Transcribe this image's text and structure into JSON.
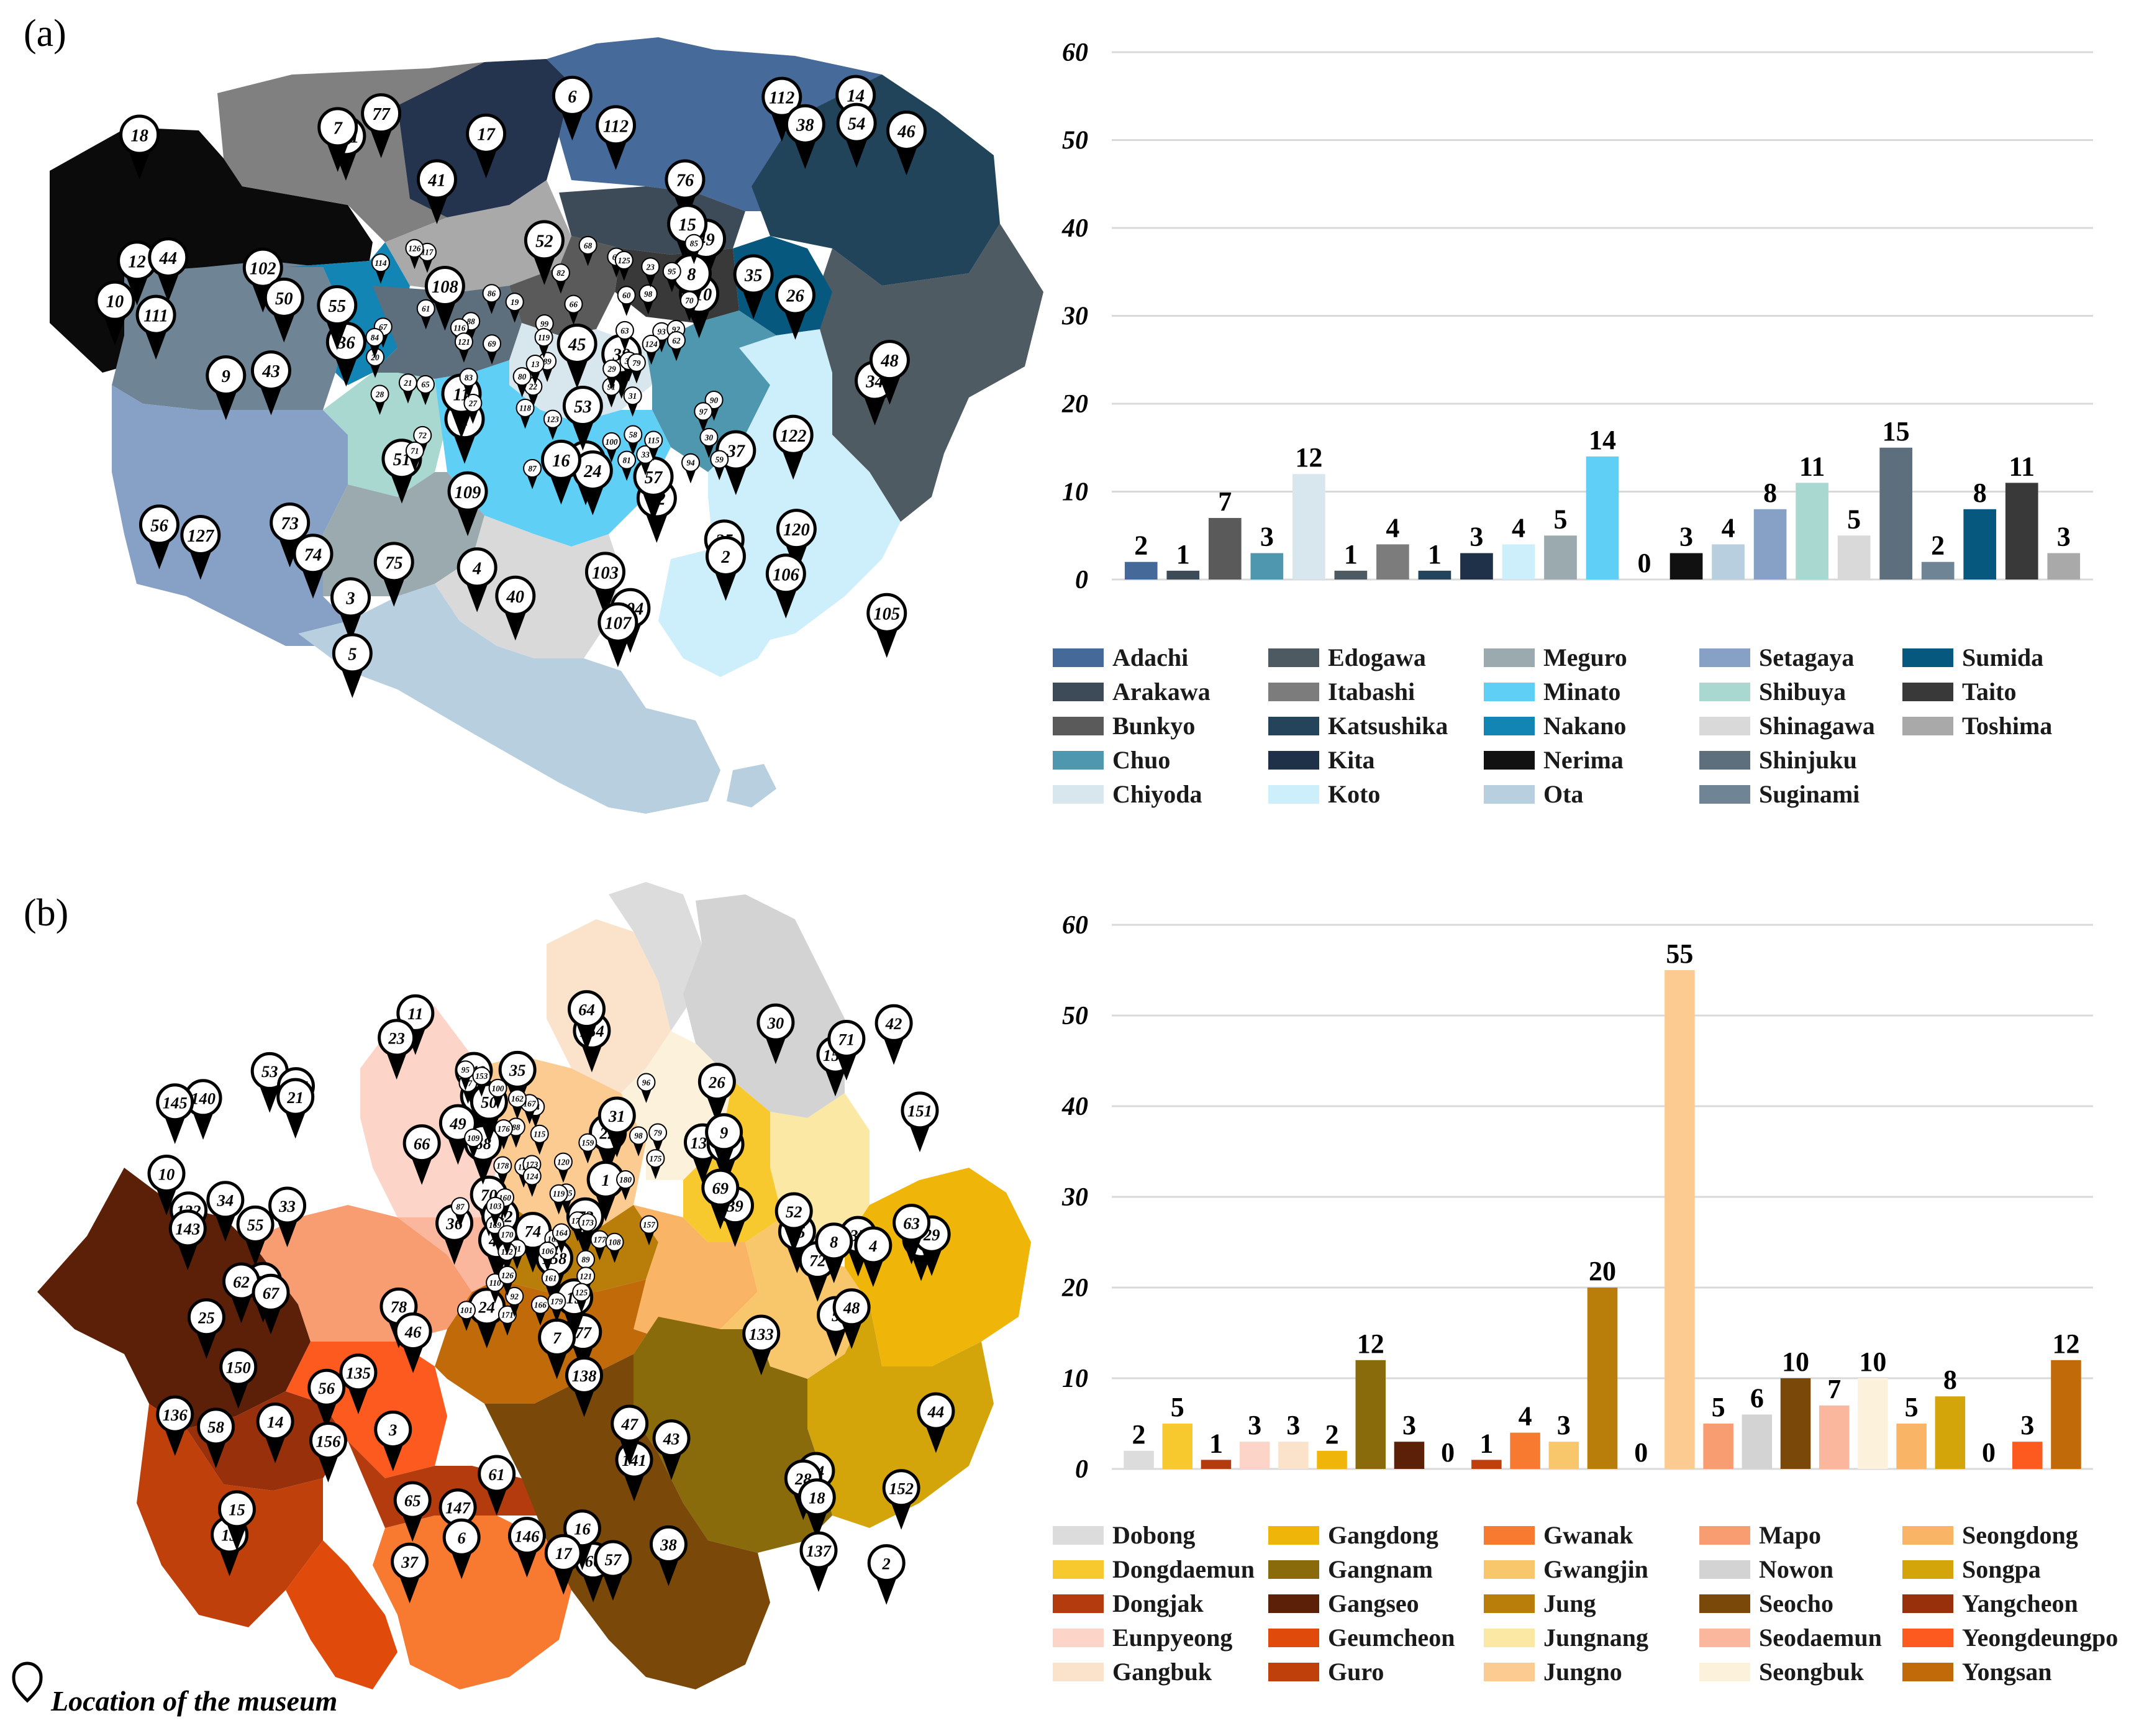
{
  "panels": [
    {
      "label": "(a)"
    },
    {
      "label": "(b)"
    }
  ],
  "map_note": "Location of the museum",
  "map_pins": {
    "tokyo": {
      "big": [
        "104",
        "101",
        "73",
        "102",
        "35",
        "103",
        "34",
        "36",
        "1",
        "74",
        "127",
        "12",
        "11",
        "13",
        "110",
        "112",
        "111",
        "38",
        "37",
        "26",
        "25",
        "24",
        "3",
        "2",
        "39",
        "49",
        "43",
        "50",
        "40",
        "41",
        "42",
        "14",
        "76",
        "75",
        "77",
        "4",
        "6",
        "44",
        "48",
        "57",
        "17",
        "45",
        "46",
        "120",
        "112",
        "122",
        "16",
        "109",
        "53",
        "54",
        "51",
        "52",
        "55",
        "15",
        "18",
        "105",
        "106",
        "108",
        "5",
        "56",
        "10",
        "107",
        "8",
        "9",
        "7"
      ],
      "small": [
        "91",
        "90",
        "93",
        "97",
        "100",
        "98",
        "92",
        "99",
        "30",
        "33",
        "32",
        "29",
        "28",
        "31",
        "27",
        "94",
        "95",
        "21",
        "23",
        "19",
        "22",
        "20",
        "63",
        "64",
        "62",
        "72",
        "61",
        "60",
        "59",
        "65",
        "70",
        "68",
        "67",
        "58",
        "69",
        "71",
        "66",
        "89",
        "79",
        "81",
        "80",
        "83",
        "82",
        "87",
        "84",
        "86",
        "85",
        "88",
        "13",
        "117",
        "118",
        "116",
        "119",
        "115",
        "114",
        "121",
        "125",
        "126",
        "124",
        "123"
      ]
    },
    "seoul": {
      "big": [
        "11",
        "26",
        "27",
        "24",
        "77",
        "12",
        "140",
        "139",
        "25",
        "22",
        "158",
        "13",
        "23",
        "78",
        "60",
        "57",
        "61",
        "30",
        "39",
        "56",
        "55",
        "62",
        "29",
        "32",
        "136",
        "34",
        "40",
        "45",
        "54",
        "58",
        "28",
        "31",
        "14",
        "36",
        "43",
        "44",
        "52",
        "147",
        "42",
        "35",
        "15",
        "37",
        "38",
        "53",
        "146",
        "20",
        "18",
        "9",
        "10",
        "19",
        "51",
        "72",
        "73",
        "155",
        "154",
        "156",
        "70",
        "74",
        "71",
        "68",
        "152",
        "5",
        "134",
        "3",
        "7",
        "132",
        "8",
        "67",
        "66",
        "151",
        "150",
        "149",
        "63",
        "69",
        "1",
        "33",
        "65",
        "21",
        "4",
        "135",
        "64",
        "16",
        "137",
        "145",
        "49",
        "50",
        "2",
        "133",
        "46",
        "141",
        "143",
        "48",
        "6",
        "17",
        "142",
        "47",
        "138"
      ],
      "small": [
        "97",
        "95",
        "87",
        "96",
        "79",
        "89",
        "84",
        "91",
        "101",
        "177",
        "112",
        "165",
        "171",
        "169",
        "163",
        "111",
        "106",
        "110",
        "88",
        "173",
        "175",
        "161",
        "92",
        "160",
        "103",
        "164",
        "170",
        "108",
        "166",
        "167",
        "172",
        "162",
        "98",
        "157",
        "119",
        "178",
        "100",
        "124",
        "121",
        "159",
        "176",
        "179",
        "173",
        "115",
        "153",
        "120",
        "126",
        "180",
        "125",
        "109"
      ]
    }
  },
  "chart_data": [
    {
      "id": "tokyo",
      "type": "bar",
      "title": "",
      "xlabel": "",
      "ylabel": "",
      "ylim": [
        0,
        60
      ],
      "yticks": [
        "0",
        "10",
        "20",
        "30",
        "40",
        "50",
        "60"
      ],
      "grid": true,
      "categories": [
        "Adachi",
        "Arakawa",
        "Bunkyo",
        "Chuo",
        "Chiyoda",
        "Edogawa",
        "Itabashi",
        "Katsushika",
        "Kita",
        "Koto",
        "Meguro",
        "Minato",
        "Nakano",
        "Nerima",
        "Ota",
        "Setagaya",
        "Shibuya",
        "Shinagawa",
        "Shinjuku",
        "Suginami",
        "Sumida",
        "Taito",
        "Toshima"
      ],
      "values": [
        2,
        1,
        7,
        3,
        12,
        1,
        4,
        1,
        3,
        4,
        5,
        14,
        0,
        3,
        4,
        8,
        11,
        5,
        15,
        2,
        8,
        11,
        3
      ],
      "colors": [
        "#456a9a",
        "#3c4b57",
        "#5a5a5a",
        "#4f97ae",
        "#d8e6ee",
        "#4d5a62",
        "#7c7c7c",
        "#23445a",
        "#1f3149",
        "#cdeefb",
        "#9aaaaf",
        "#5fcff6",
        "#1285b5",
        "#111111",
        "#b8cfdf",
        "#86a0c6",
        "#a8d8cf",
        "#d9d9d9",
        "#5d6e7c",
        "#6f8596",
        "#07587e",
        "#393939",
        "#a9a9a9"
      ],
      "legend": {
        "placement": "bottom",
        "columns": 5
      }
    },
    {
      "id": "seoul",
      "type": "bar",
      "title": "",
      "xlabel": "",
      "ylabel": "",
      "ylim": [
        0,
        60
      ],
      "yticks": [
        "0",
        "10",
        "20",
        "30",
        "40",
        "50",
        "60"
      ],
      "grid": true,
      "categories": [
        "Dobong",
        "Dongdaemun",
        "Dongjak",
        "Eunpyeong",
        "Gangbuk",
        "Gangdong",
        "Gangnam",
        "Gangseo",
        "Geumcheon",
        "Guro",
        "Gwanak",
        "Gwangjin",
        "Jung",
        "Jungnang",
        "Jungno",
        "Mapo",
        "Nowon",
        "Seocho",
        "Seodaemun",
        "Seongbuk",
        "Seongdong",
        "Songpa",
        "Yangcheon",
        "Yeongdeungpo",
        "Yongsan"
      ],
      "values": [
        2,
        5,
        1,
        3,
        3,
        2,
        12,
        3,
        0,
        1,
        4,
        3,
        20,
        0,
        55,
        5,
        6,
        10,
        7,
        10,
        5,
        8,
        0,
        3,
        12
      ],
      "colors": [
        "#dcdcdc",
        "#f8c92e",
        "#b33b0d",
        "#fcd5c8",
        "#fbe3cb",
        "#f0b509",
        "#8a6b0b",
        "#5c2008",
        "#e04a0a",
        "#c0400b",
        "#f87a30",
        "#f9c76b",
        "#b97e0a",
        "#fbe8a5",
        "#fbcb92",
        "#f89d72",
        "#d3d3d3",
        "#7a4808",
        "#fbb79e",
        "#fcf2dc",
        "#f9b466",
        "#d3a50b",
        "#98300b",
        "#fc5a1e",
        "#c06a0a"
      ],
      "legend": {
        "placement": "bottom",
        "columns": 5
      }
    }
  ]
}
